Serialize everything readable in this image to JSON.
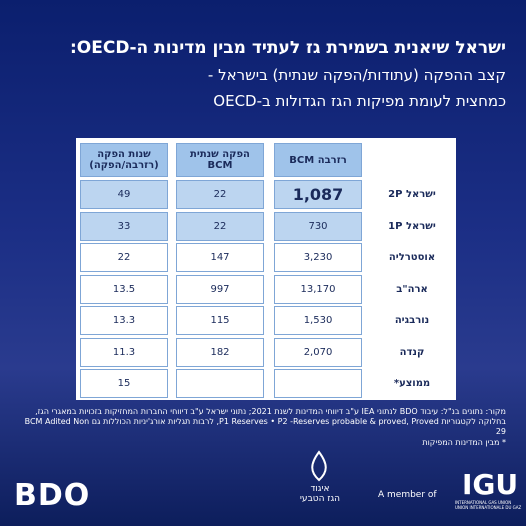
{
  "header": {
    "title": "ישראל שיאנית בשמירת גז לעתיד מבין מדינות ה-OECD:",
    "subtitle_lines": [
      "קצב ההפקה (עתודות/הפקה שנתית) בישראל -",
      "כמחצית לעומת מפיקות הגז הגדולות ב-OECD"
    ]
  },
  "table": {
    "columns": [
      "רזרבה BCM",
      "הפקה שנתית BCM",
      "שנות הפקה (רזרבה/הפקה)"
    ],
    "rows": [
      {
        "label": "ישראל 2P",
        "reserve": "1,087",
        "production": "22",
        "years": "49",
        "highlight": true
      },
      {
        "label": "ישראל 1P",
        "reserve": "730",
        "production": "22",
        "years": "33",
        "highlight": true
      },
      {
        "label": "אוסטרליה",
        "reserve": "3,230",
        "production": "147",
        "years": "22"
      },
      {
        "label": "ארה\"ב",
        "reserve": "13,170",
        "production": "997",
        "years": "13.5"
      },
      {
        "label": "נורבגיה",
        "reserve": "1,530",
        "production": "115",
        "years": "13.3"
      },
      {
        "label": "קנדה",
        "reserve": "2,070",
        "production": "182",
        "years": "11.3"
      },
      {
        "label": "ממוצע*",
        "years": "15"
      }
    ]
  },
  "footnote": {
    "source": "מקור: נתונים בנ\"ל: עיבוד BDO לנתוני IEA ע\"ב דיווחי המדינות לשנת 2021; נתוני ישראל ע\"ב דיווחי החברות המחזיקות בזכויות במאגרי הגז, בחלוקה לקטגוריות P1 Reserves • P2 -Reserves probable & proved, Proved, לרבות תגליות אורג'יניות הכוללות גם BCM Adited Non 29",
    "note": "* מבין המדינות המפיקות"
  },
  "footer": {
    "bdo": "BDO",
    "association": [
      "איגוד",
      "הגז הטבעי"
    ],
    "member": "A member of",
    "igu": "IGU",
    "igu_sub": [
      "INTERNATIONAL GAS UNION",
      "UNION INTERNATIONALE DU GAZ"
    ]
  }
}
